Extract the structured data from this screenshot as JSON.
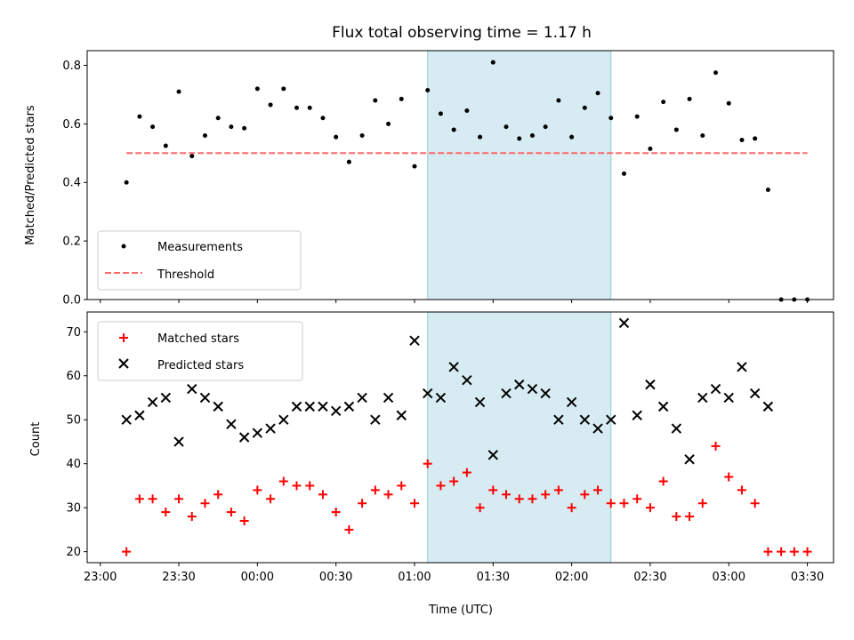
{
  "chart_data": [
    {
      "type": "scatter",
      "title": "Flux total observing time = 1.17 h",
      "ylabel": "Matched/Predicted stars",
      "xlabel": "",
      "xlim_minutes": [
        -5,
        280
      ],
      "ylim": [
        0,
        0.85
      ],
      "yticks": [
        0.0,
        0.2,
        0.4,
        0.6,
        0.8
      ],
      "grid": false,
      "legend": "lower-left",
      "highlight_span": {
        "start": "01:05",
        "end": "02:15",
        "color": "#add8e6"
      },
      "threshold": {
        "name": "Threshold",
        "value": 0.5,
        "from": "23:10",
        "to": "03:30",
        "color": "#ff6b6b",
        "style": "dashed"
      },
      "series": [
        {
          "name": "Measurements",
          "marker": "dot",
          "color": "#000000",
          "times": [
            "23:10",
            "23:15",
            "23:20",
            "23:25",
            "23:30",
            "23:35",
            "23:40",
            "23:45",
            "23:50",
            "23:55",
            "00:00",
            "00:05",
            "00:10",
            "00:15",
            "00:20",
            "00:25",
            "00:30",
            "00:35",
            "00:40",
            "00:45",
            "00:50",
            "00:55",
            "01:00",
            "01:05",
            "01:10",
            "01:15",
            "01:20",
            "01:25",
            "01:30",
            "01:35",
            "01:40",
            "01:45",
            "01:50",
            "01:55",
            "02:00",
            "02:05",
            "02:10",
            "02:15",
            "02:20",
            "02:25",
            "02:30",
            "02:35",
            "02:40",
            "02:45",
            "02:50",
            "02:55",
            "03:00",
            "03:05",
            "03:10",
            "03:15",
            "03:20",
            "03:25",
            "03:30"
          ],
          "values": [
            0.4,
            0.625,
            0.59,
            0.525,
            0.71,
            0.49,
            0.56,
            0.62,
            0.59,
            0.585,
            0.72,
            0.665,
            0.72,
            0.655,
            0.655,
            0.62,
            0.555,
            0.47,
            0.56,
            0.68,
            0.6,
            0.685,
            0.455,
            0.715,
            0.635,
            0.58,
            0.645,
            0.555,
            0.81,
            0.59,
            0.55,
            0.56,
            0.59,
            0.68,
            0.555,
            0.655,
            0.705,
            0.62,
            0.43,
            0.625,
            0.515,
            0.675,
            0.58,
            0.685,
            0.56,
            0.775,
            0.67,
            0.545,
            0.55,
            0.375,
            0.0,
            0.0,
            0.0
          ]
        }
      ]
    },
    {
      "type": "scatter",
      "title": "",
      "ylabel": "Count",
      "xlabel": "Time (UTC)",
      "xlim_minutes": [
        -5,
        280
      ],
      "ylim": [
        17.5,
        74.5
      ],
      "yticks": [
        20,
        30,
        40,
        50,
        60,
        70
      ],
      "xticks": [
        "23:00",
        "23:30",
        "00:00",
        "00:30",
        "01:00",
        "01:30",
        "02:00",
        "02:30",
        "03:00",
        "03:30"
      ],
      "grid": false,
      "legend": "upper-left",
      "highlight_span": {
        "start": "01:05",
        "end": "02:15",
        "color": "#add8e6"
      },
      "series": [
        {
          "name": "Matched stars",
          "marker": "plus",
          "color": "#ff0000",
          "times": [
            "23:10",
            "23:15",
            "23:20",
            "23:25",
            "23:30",
            "23:35",
            "23:40",
            "23:45",
            "23:50",
            "23:55",
            "00:00",
            "00:05",
            "00:10",
            "00:15",
            "00:20",
            "00:25",
            "00:30",
            "00:35",
            "00:40",
            "00:45",
            "00:50",
            "00:55",
            "01:00",
            "01:05",
            "01:10",
            "01:15",
            "01:20",
            "01:25",
            "01:30",
            "01:35",
            "01:40",
            "01:45",
            "01:50",
            "01:55",
            "02:00",
            "02:05",
            "02:10",
            "02:15",
            "02:20",
            "02:25",
            "02:30",
            "02:35",
            "02:40",
            "02:45",
            "02:50",
            "02:55",
            "03:00",
            "03:05",
            "03:10",
            "03:15",
            "03:20",
            "03:25",
            "03:30"
          ],
          "values": [
            20,
            32,
            32,
            29,
            32,
            28,
            31,
            33,
            29,
            27,
            34,
            32,
            36,
            35,
            35,
            33,
            29,
            25,
            31,
            34,
            33,
            35,
            31,
            40,
            35,
            36,
            38,
            30,
            34,
            33,
            32,
            32,
            33,
            34,
            30,
            33,
            34,
            31,
            31,
            32,
            30,
            36,
            28,
            28,
            31,
            44,
            37,
            34,
            31,
            20,
            20,
            20,
            20
          ]
        },
        {
          "name": "Predicted stars",
          "marker": "x",
          "color": "#000000",
          "times": [
            "23:10",
            "23:15",
            "23:20",
            "23:25",
            "23:30",
            "23:35",
            "23:40",
            "23:45",
            "23:50",
            "23:55",
            "00:00",
            "00:05",
            "00:10",
            "00:15",
            "00:20",
            "00:25",
            "00:30",
            "00:35",
            "00:40",
            "00:45",
            "00:50",
            "00:55",
            "01:00",
            "01:05",
            "01:10",
            "01:15",
            "01:20",
            "01:25",
            "01:30",
            "01:35",
            "01:40",
            "01:45",
            "01:50",
            "01:55",
            "02:00",
            "02:05",
            "02:10",
            "02:15",
            "02:20",
            "02:25",
            "02:30",
            "02:35",
            "02:40",
            "02:45",
            "02:50",
            "02:55",
            "03:00",
            "03:05",
            "03:10",
            "03:15"
          ],
          "values": [
            50,
            51,
            54,
            55,
            45,
            57,
            55,
            53,
            49,
            46,
            47,
            48,
            50,
            53,
            53,
            53,
            52,
            53,
            55,
            50,
            55,
            51,
            68,
            56,
            55,
            62,
            59,
            54,
            42,
            56,
            58,
            57,
            56,
            50,
            54,
            50,
            48,
            50,
            72,
            51,
            58,
            53,
            48,
            41,
            55,
            57,
            55,
            62,
            56,
            53
          ]
        }
      ]
    }
  ]
}
